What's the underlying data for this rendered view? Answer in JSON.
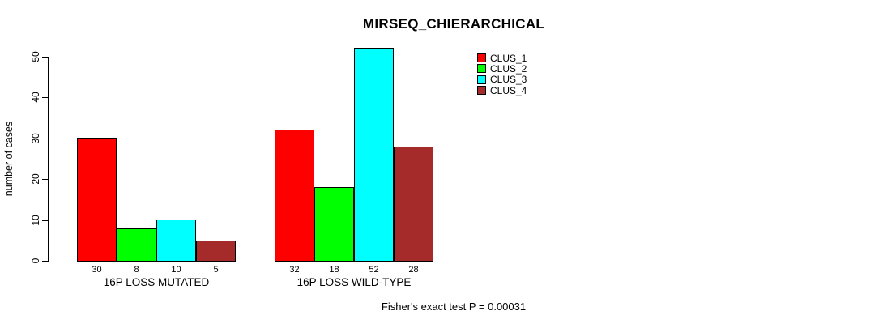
{
  "chart_data": {
    "type": "bar",
    "title": "MIRSEQ_CHIERARCHICAL",
    "ylabel": "number of cases",
    "xlabel": "",
    "ylim": [
      0,
      50
    ],
    "yticks": [
      0,
      10,
      20,
      30,
      40,
      50
    ],
    "grid": false,
    "legend_position": "top-right-outside-plot",
    "categories": [
      "16P LOSS MUTATED",
      "16P LOSS WILD-TYPE"
    ],
    "series": [
      {
        "name": "CLUS_1",
        "color": "#ff0000",
        "values": [
          30,
          32
        ]
      },
      {
        "name": "CLUS_2",
        "color": "#00ff00",
        "values": [
          8,
          18
        ]
      },
      {
        "name": "CLUS_3",
        "color": "#00ffff",
        "values": [
          10,
          52
        ]
      },
      {
        "name": "CLUS_4",
        "color": "#a52a2a",
        "values": [
          5,
          28
        ]
      }
    ],
    "bar_value_labels": [
      [
        30,
        8,
        10,
        5
      ],
      [
        32,
        18,
        52,
        28
      ]
    ],
    "annotation": "Fisher's exact test P = 0.00031"
  },
  "colors": {
    "background": "#ffffff",
    "axis": "#000000",
    "text": "#000000"
  }
}
